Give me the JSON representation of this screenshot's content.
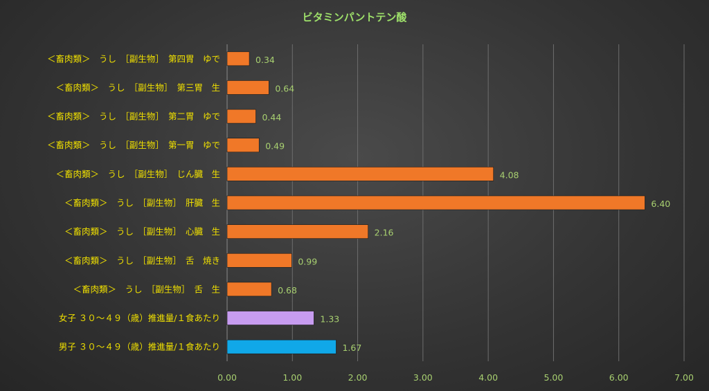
{
  "chart_data": {
    "type": "bar",
    "orientation": "horizontal",
    "title": "ビタミンパントテン酸",
    "xlim": [
      0,
      7
    ],
    "xticks": [
      "0.00",
      "1.00",
      "2.00",
      "3.00",
      "4.00",
      "5.00",
      "6.00",
      "7.00"
    ],
    "grid": "vertical",
    "categories": [
      "＜畜肉類＞　うし　［副生物］　第四胃　ゆで",
      "＜畜肉類＞　うし　［副生物］　第三胃　生",
      "＜畜肉類＞　うし　［副生物］　第二胃　ゆで",
      "＜畜肉類＞　うし　［副生物］　第一胃　ゆで",
      "＜畜肉類＞　うし　［副生物］　じん臓　生",
      "＜畜肉類＞　うし　［副生物］　肝臓　生",
      "＜畜肉類＞　うし　［副生物］　心臓　生",
      "＜畜肉類＞　うし　［副生物］　舌　焼き",
      "＜畜肉類＞　うし　［副生物］　舌　生",
      "女子 ３０～４９（歳）推進量/１食あたり",
      "男子 ３０～４９（歳）推進量/１食あたり"
    ],
    "values": [
      0.34,
      0.64,
      0.44,
      0.49,
      4.08,
      6.4,
      2.16,
      0.99,
      0.68,
      1.33,
      1.67
    ],
    "value_labels": [
      "0.34",
      "0.64",
      "0.44",
      "0.49",
      "4.08",
      "6.40",
      "2.16",
      "0.99",
      "0.68",
      "1.33",
      "1.67"
    ],
    "colors": [
      "#f07828",
      "#f07828",
      "#f07828",
      "#f07828",
      "#f07828",
      "#f07828",
      "#f07828",
      "#f07828",
      "#f07828",
      "#c79cf0",
      "#10a8e8"
    ],
    "background": "#333333",
    "category_label_color": "#f0e000",
    "value_label_color": "#a8d070",
    "title_color": "#9ee06a"
  }
}
